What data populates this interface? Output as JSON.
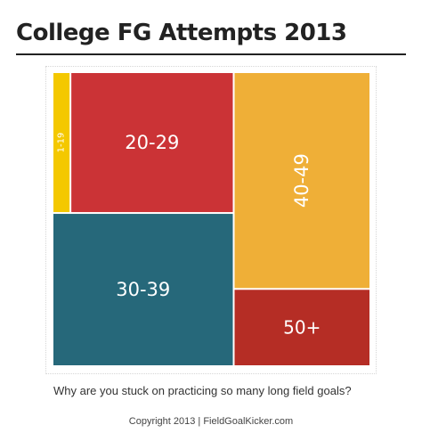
{
  "chart_data": {
    "type": "treemap",
    "title": "College FG Attempts 2013",
    "caption": "Why are you stuck on practicing so many long field goals?",
    "credit": "Copyright 2013 | FieldGoalKicker.com",
    "tiles": [
      {
        "label": "1-19",
        "share": 0.027,
        "color": "#f4c800"
      },
      {
        "label": "20-29",
        "share": 0.246,
        "color": "#cb3336"
      },
      {
        "label": "30-39",
        "share": 0.297,
        "color": "#26687a"
      },
      {
        "label": "40-49",
        "share": 0.317,
        "color": "#efaf37"
      },
      {
        "label": "50+",
        "share": 0.113,
        "color": "#b52d25"
      }
    ]
  }
}
